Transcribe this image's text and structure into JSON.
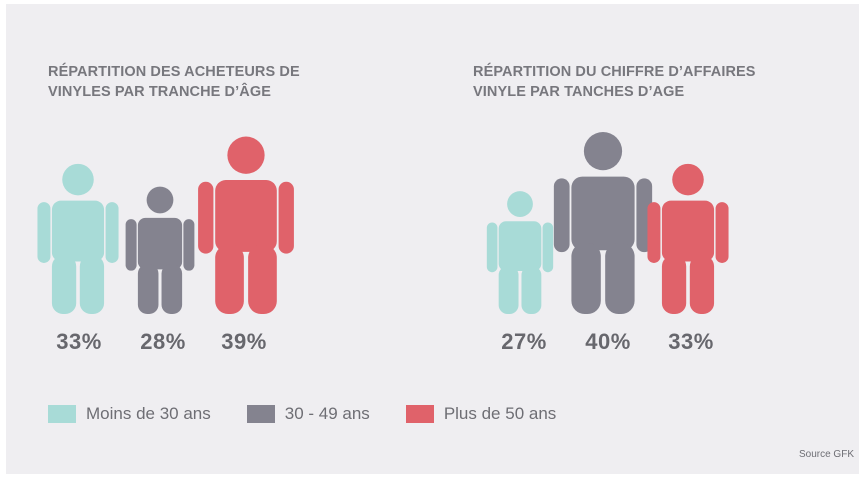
{
  "chart_data": [
    {
      "type": "pictograph",
      "title_lines": [
        "RÉPARTITION DES ACHETEURS DE",
        "VINYLES PAR TRANCHE D’ÂGE"
      ],
      "categories": [
        "Moins de 30 ans",
        "30 - 49 ans",
        "Plus de 50 ans"
      ],
      "values": [
        33,
        28,
        39
      ],
      "value_labels": [
        "33%",
        "28%",
        "39%"
      ]
    },
    {
      "type": "pictograph",
      "title_lines": [
        "RÉPARTITION DU CHIFFRE D’AFFAIRES",
        "VINYLE PAR TANCHES D’AGE"
      ],
      "categories": [
        "Moins de 30 ans",
        "30 - 49 ans",
        "Plus de 50 ans"
      ],
      "values": [
        27,
        40,
        33
      ],
      "value_labels": [
        "27%",
        "40%",
        "33%"
      ]
    }
  ],
  "legend": [
    {
      "label": "Moins de 30 ans",
      "color": "#a8dbd7"
    },
    {
      "label": "30 - 49 ans",
      "color": "#84838f"
    },
    {
      "label": "Plus de 50 ans",
      "color": "#e0626a"
    }
  ],
  "colors": [
    "#a8dbd7",
    "#84838f",
    "#e0626a"
  ],
  "source": "Source GFK"
}
